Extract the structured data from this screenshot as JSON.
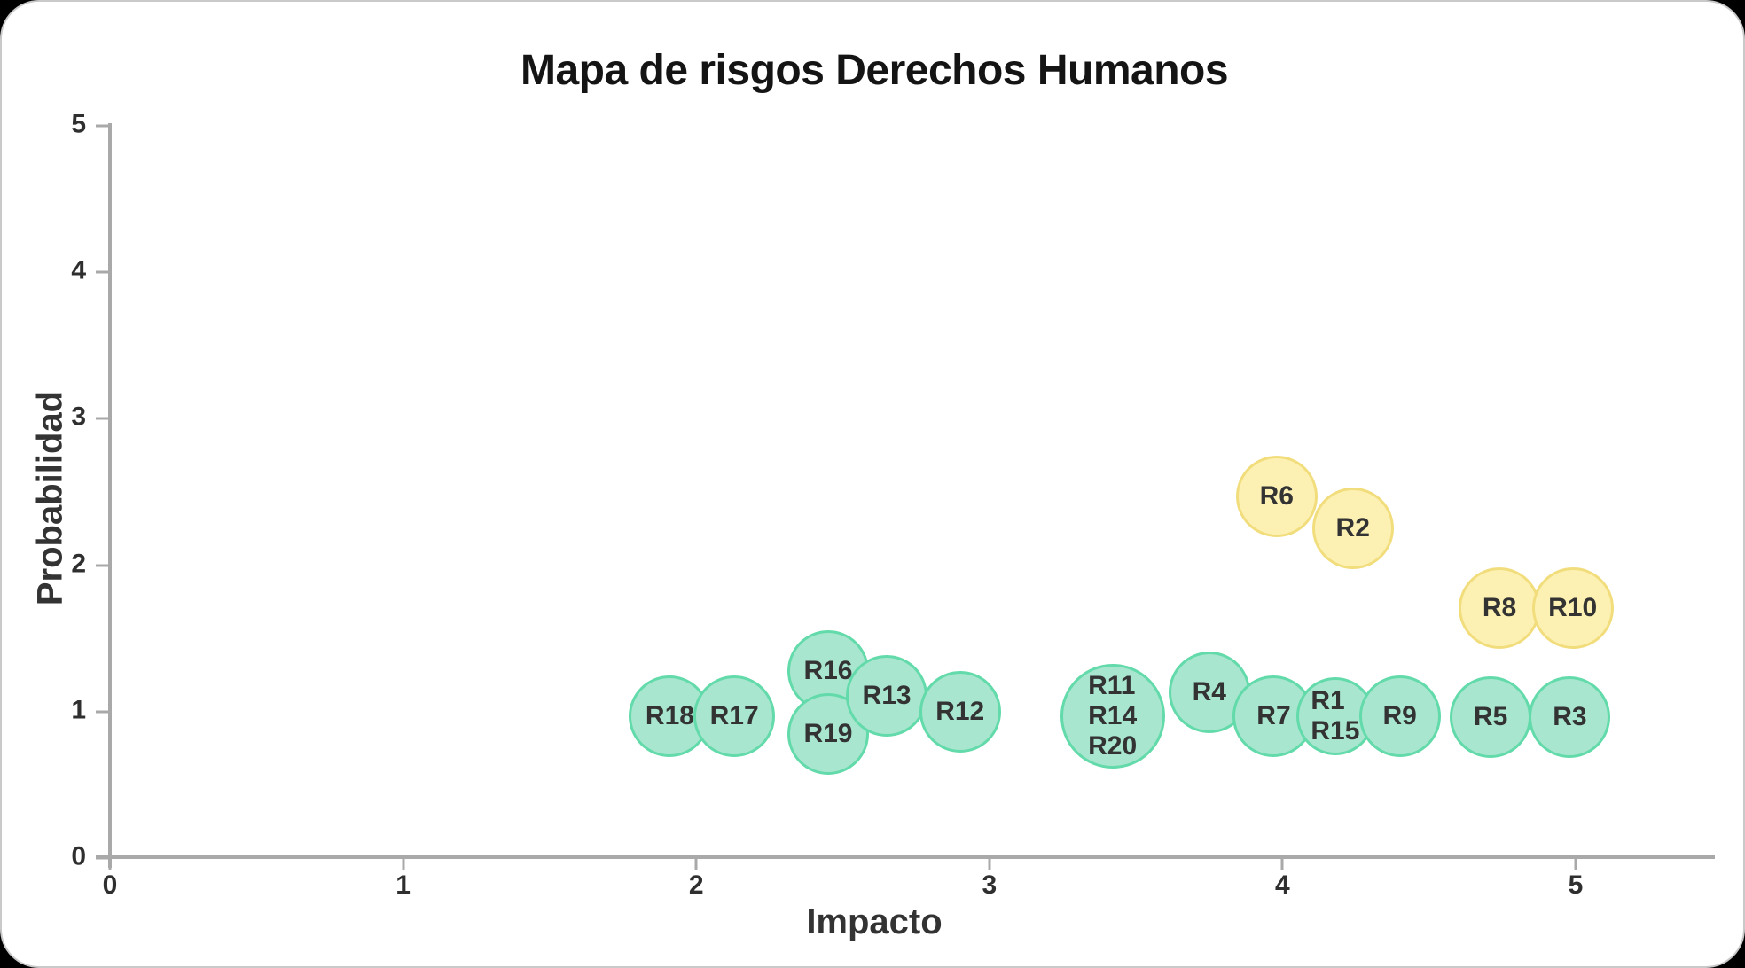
{
  "page": {
    "background": "#000000",
    "card_background": "#ffffff"
  },
  "chart_data": {
    "type": "scatter",
    "title": "Mapa de risgos Derechos Humanos",
    "xlabel": "Impacto",
    "ylabel": "Probabilidad",
    "xlim": [
      0,
      5
    ],
    "ylim": [
      0,
      5
    ],
    "x_ticks": [
      0,
      1,
      2,
      3,
      4,
      5
    ],
    "y_ticks": [
      0,
      1,
      2,
      3,
      4,
      5
    ],
    "grid": false,
    "legend": "none",
    "colors": {
      "low_risk_fill": "#A8E6CF",
      "low_risk_border": "#62DAAA",
      "medium_risk_fill": "#FCF1B3",
      "medium_risk_border": "#F2DD7D",
      "axis": "#A9A9A9",
      "text": "#333333"
    },
    "series": [
      {
        "name": "riesgos-verdes",
        "fill": "#A8E6CF",
        "border": "#62DAAA",
        "points": [
          {
            "labels": [
              "R18"
            ],
            "x": 1.91,
            "y": 0.97,
            "r": 46
          },
          {
            "labels": [
              "R17"
            ],
            "x": 2.13,
            "y": 0.97,
            "r": 46
          },
          {
            "labels": [
              "R16"
            ],
            "x": 2.45,
            "y": 1.28,
            "r": 46
          },
          {
            "labels": [
              "R19"
            ],
            "x": 2.45,
            "y": 0.85,
            "r": 46
          },
          {
            "labels": [
              "R13"
            ],
            "x": 2.65,
            "y": 1.11,
            "r": 46
          },
          {
            "labels": [
              "R12"
            ],
            "x": 2.9,
            "y": 1.0,
            "r": 46
          },
          {
            "labels": [
              "R11",
              "R14",
              "R20"
            ],
            "x": 3.42,
            "y": 0.97,
            "r": 59
          },
          {
            "labels": [
              "R4"
            ],
            "x": 3.75,
            "y": 1.13,
            "r": 46
          },
          {
            "labels": [
              "R7"
            ],
            "x": 3.97,
            "y": 0.97,
            "r": 46
          },
          {
            "labels": [
              "R1",
              "R15"
            ],
            "x": 4.18,
            "y": 0.97,
            "r": 44
          },
          {
            "labels": [
              "R9"
            ],
            "x": 4.4,
            "y": 0.97,
            "r": 46
          },
          {
            "labels": [
              "R5"
            ],
            "x": 4.71,
            "y": 0.96,
            "r": 46
          },
          {
            "labels": [
              "R3"
            ],
            "x": 4.98,
            "y": 0.96,
            "r": 46
          }
        ]
      },
      {
        "name": "riesgos-amarillos",
        "fill": "#FCF1B3",
        "border": "#F2DD7D",
        "points": [
          {
            "labels": [
              "R6"
            ],
            "x": 3.98,
            "y": 2.47,
            "r": 46
          },
          {
            "labels": [
              "R2"
            ],
            "x": 4.24,
            "y": 2.25,
            "r": 46
          },
          {
            "labels": [
              "R8"
            ],
            "x": 4.74,
            "y": 1.71,
            "r": 46
          },
          {
            "labels": [
              "R10"
            ],
            "x": 4.99,
            "y": 1.71,
            "r": 46
          }
        ]
      }
    ]
  }
}
